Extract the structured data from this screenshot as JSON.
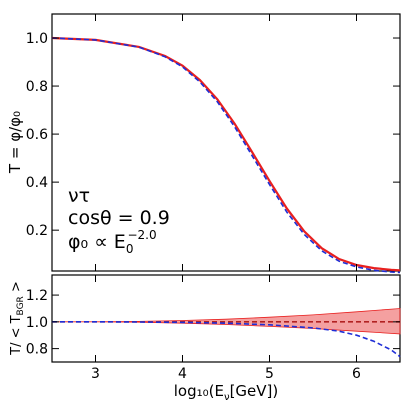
{
  "chart_data": [
    {
      "panel": "top",
      "type": "line",
      "ylabel": "T = φ/φ₀",
      "xlim": [
        2.5,
        6.5
      ],
      "ylim": [
        0.03,
        1.1
      ],
      "x_ticks": [
        3,
        4,
        5,
        6
      ],
      "y_ticks": [
        0.2,
        0.4,
        0.6,
        0.8,
        1.0
      ],
      "y_tick_labels": [
        "0.2",
        "0.4",
        "0.6",
        "0.8",
        "1.0"
      ],
      "annotation": {
        "line1": "ντ",
        "line2": "cosθ = 0.9",
        "line3_prefix": "φ₀ ∝ E",
        "line3_sub": "0",
        "line3_sup": "−2.0"
      },
      "series": [
        {
          "style": "solid-red",
          "color": "#e8201f",
          "x": [
            2.5,
            3.0,
            3.5,
            3.8,
            4.0,
            4.2,
            4.4,
            4.6,
            4.8,
            5.0,
            5.2,
            5.4,
            5.6,
            5.8,
            6.0,
            6.2,
            6.4,
            6.5
          ],
          "y": [
            1.0,
            0.992,
            0.963,
            0.925,
            0.885,
            0.825,
            0.745,
            0.643,
            0.525,
            0.405,
            0.29,
            0.195,
            0.125,
            0.08,
            0.055,
            0.042,
            0.035,
            0.033
          ]
        },
        {
          "style": "dashed-blue",
          "color": "#1f2ed6",
          "x": [
            2.5,
            3.0,
            3.5,
            3.8,
            4.0,
            4.2,
            4.4,
            4.6,
            4.8,
            5.0,
            5.2,
            5.4,
            5.6,
            5.8,
            6.0,
            6.2,
            6.4,
            6.5
          ],
          "y": [
            1.0,
            0.992,
            0.962,
            0.922,
            0.88,
            0.817,
            0.735,
            0.63,
            0.51,
            0.39,
            0.275,
            0.182,
            0.114,
            0.071,
            0.047,
            0.033,
            0.026,
            0.024
          ]
        }
      ]
    },
    {
      "panel": "bottom",
      "type": "line",
      "ylabel": "T/ < T",
      "ylabel_sub": "BGR",
      "ylabel_end": " >",
      "xlabel": "log₁₀(E",
      "xlabel_sub": "ν",
      "xlabel_end": "[GeV])",
      "xlim": [
        2.5,
        6.5
      ],
      "ylim": [
        0.7,
        1.35
      ],
      "x_ticks": [
        3,
        4,
        5,
        6
      ],
      "x_tick_labels": [
        "3",
        "4",
        "5",
        "6"
      ],
      "y_ticks": [
        0.8,
        1.0,
        1.2
      ],
      "y_tick_labels": [
        "0.8",
        "1.0",
        "1.2"
      ],
      "band": {
        "color": "#f08080",
        "x": [
          2.5,
          3.0,
          3.5,
          4.0,
          4.5,
          5.0,
          5.5,
          6.0,
          6.5
        ],
        "lower": [
          1.0,
          1.0,
          0.997,
          0.99,
          0.98,
          0.966,
          0.95,
          0.93,
          0.91
        ],
        "upper": [
          1.0,
          1.0,
          1.003,
          1.01,
          1.02,
          1.035,
          1.052,
          1.075,
          1.1
        ]
      },
      "series": [
        {
          "style": "dashed-red",
          "color": "#b22222",
          "x": [
            2.5,
            6.5
          ],
          "y": [
            1.0,
            1.0
          ]
        },
        {
          "style": "dashed-blue",
          "color": "#1f2ed6",
          "x": [
            2.5,
            3.0,
            3.5,
            4.0,
            4.5,
            5.0,
            5.5,
            5.8,
            6.0,
            6.2,
            6.4,
            6.5
          ],
          "y": [
            1.0,
            1.0,
            0.999,
            0.996,
            0.99,
            0.978,
            0.955,
            0.93,
            0.9,
            0.855,
            0.79,
            0.74
          ]
        }
      ]
    }
  ]
}
